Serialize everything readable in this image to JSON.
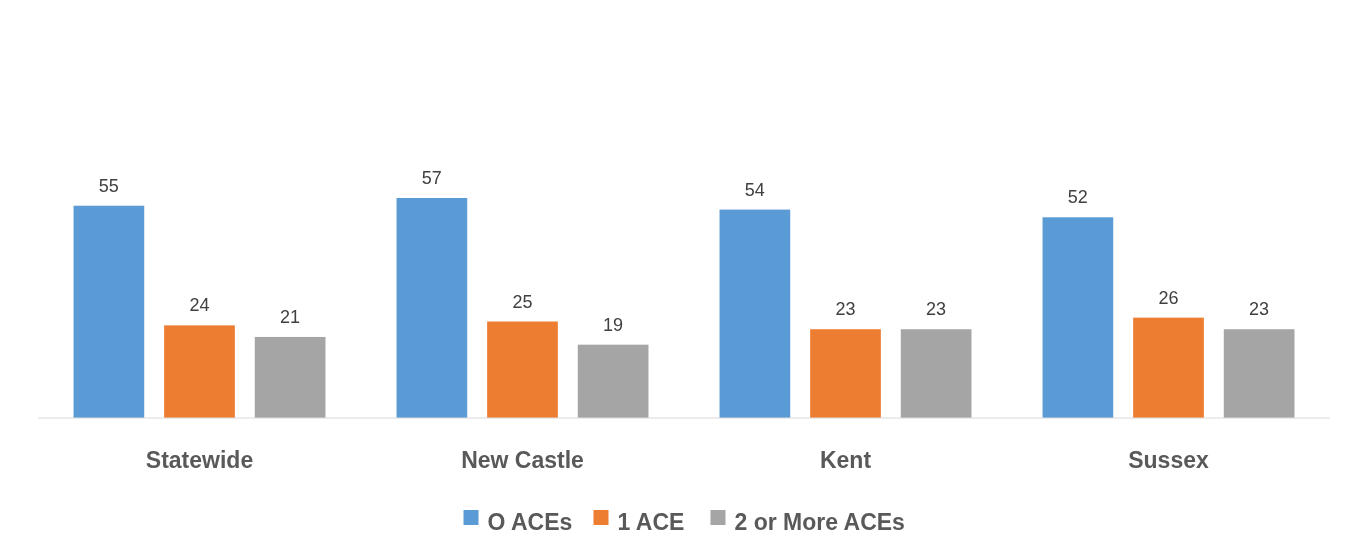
{
  "chart_data": {
    "type": "bar",
    "categories": [
      "Statewide",
      "New Castle",
      "Kent",
      "Sussex"
    ],
    "series": [
      {
        "name": "O ACEs",
        "color": "#5b9bd5",
        "values": [
          55,
          57,
          54,
          52
        ]
      },
      {
        "name": "1 ACE",
        "color": "#ed7d31",
        "values": [
          24,
          25,
          23,
          26
        ]
      },
      {
        "name": "2 or More ACEs",
        "color": "#a5a5a5",
        "values": [
          21,
          19,
          23,
          23
        ]
      }
    ],
    "data_labels": true,
    "legend": "bottom"
  }
}
